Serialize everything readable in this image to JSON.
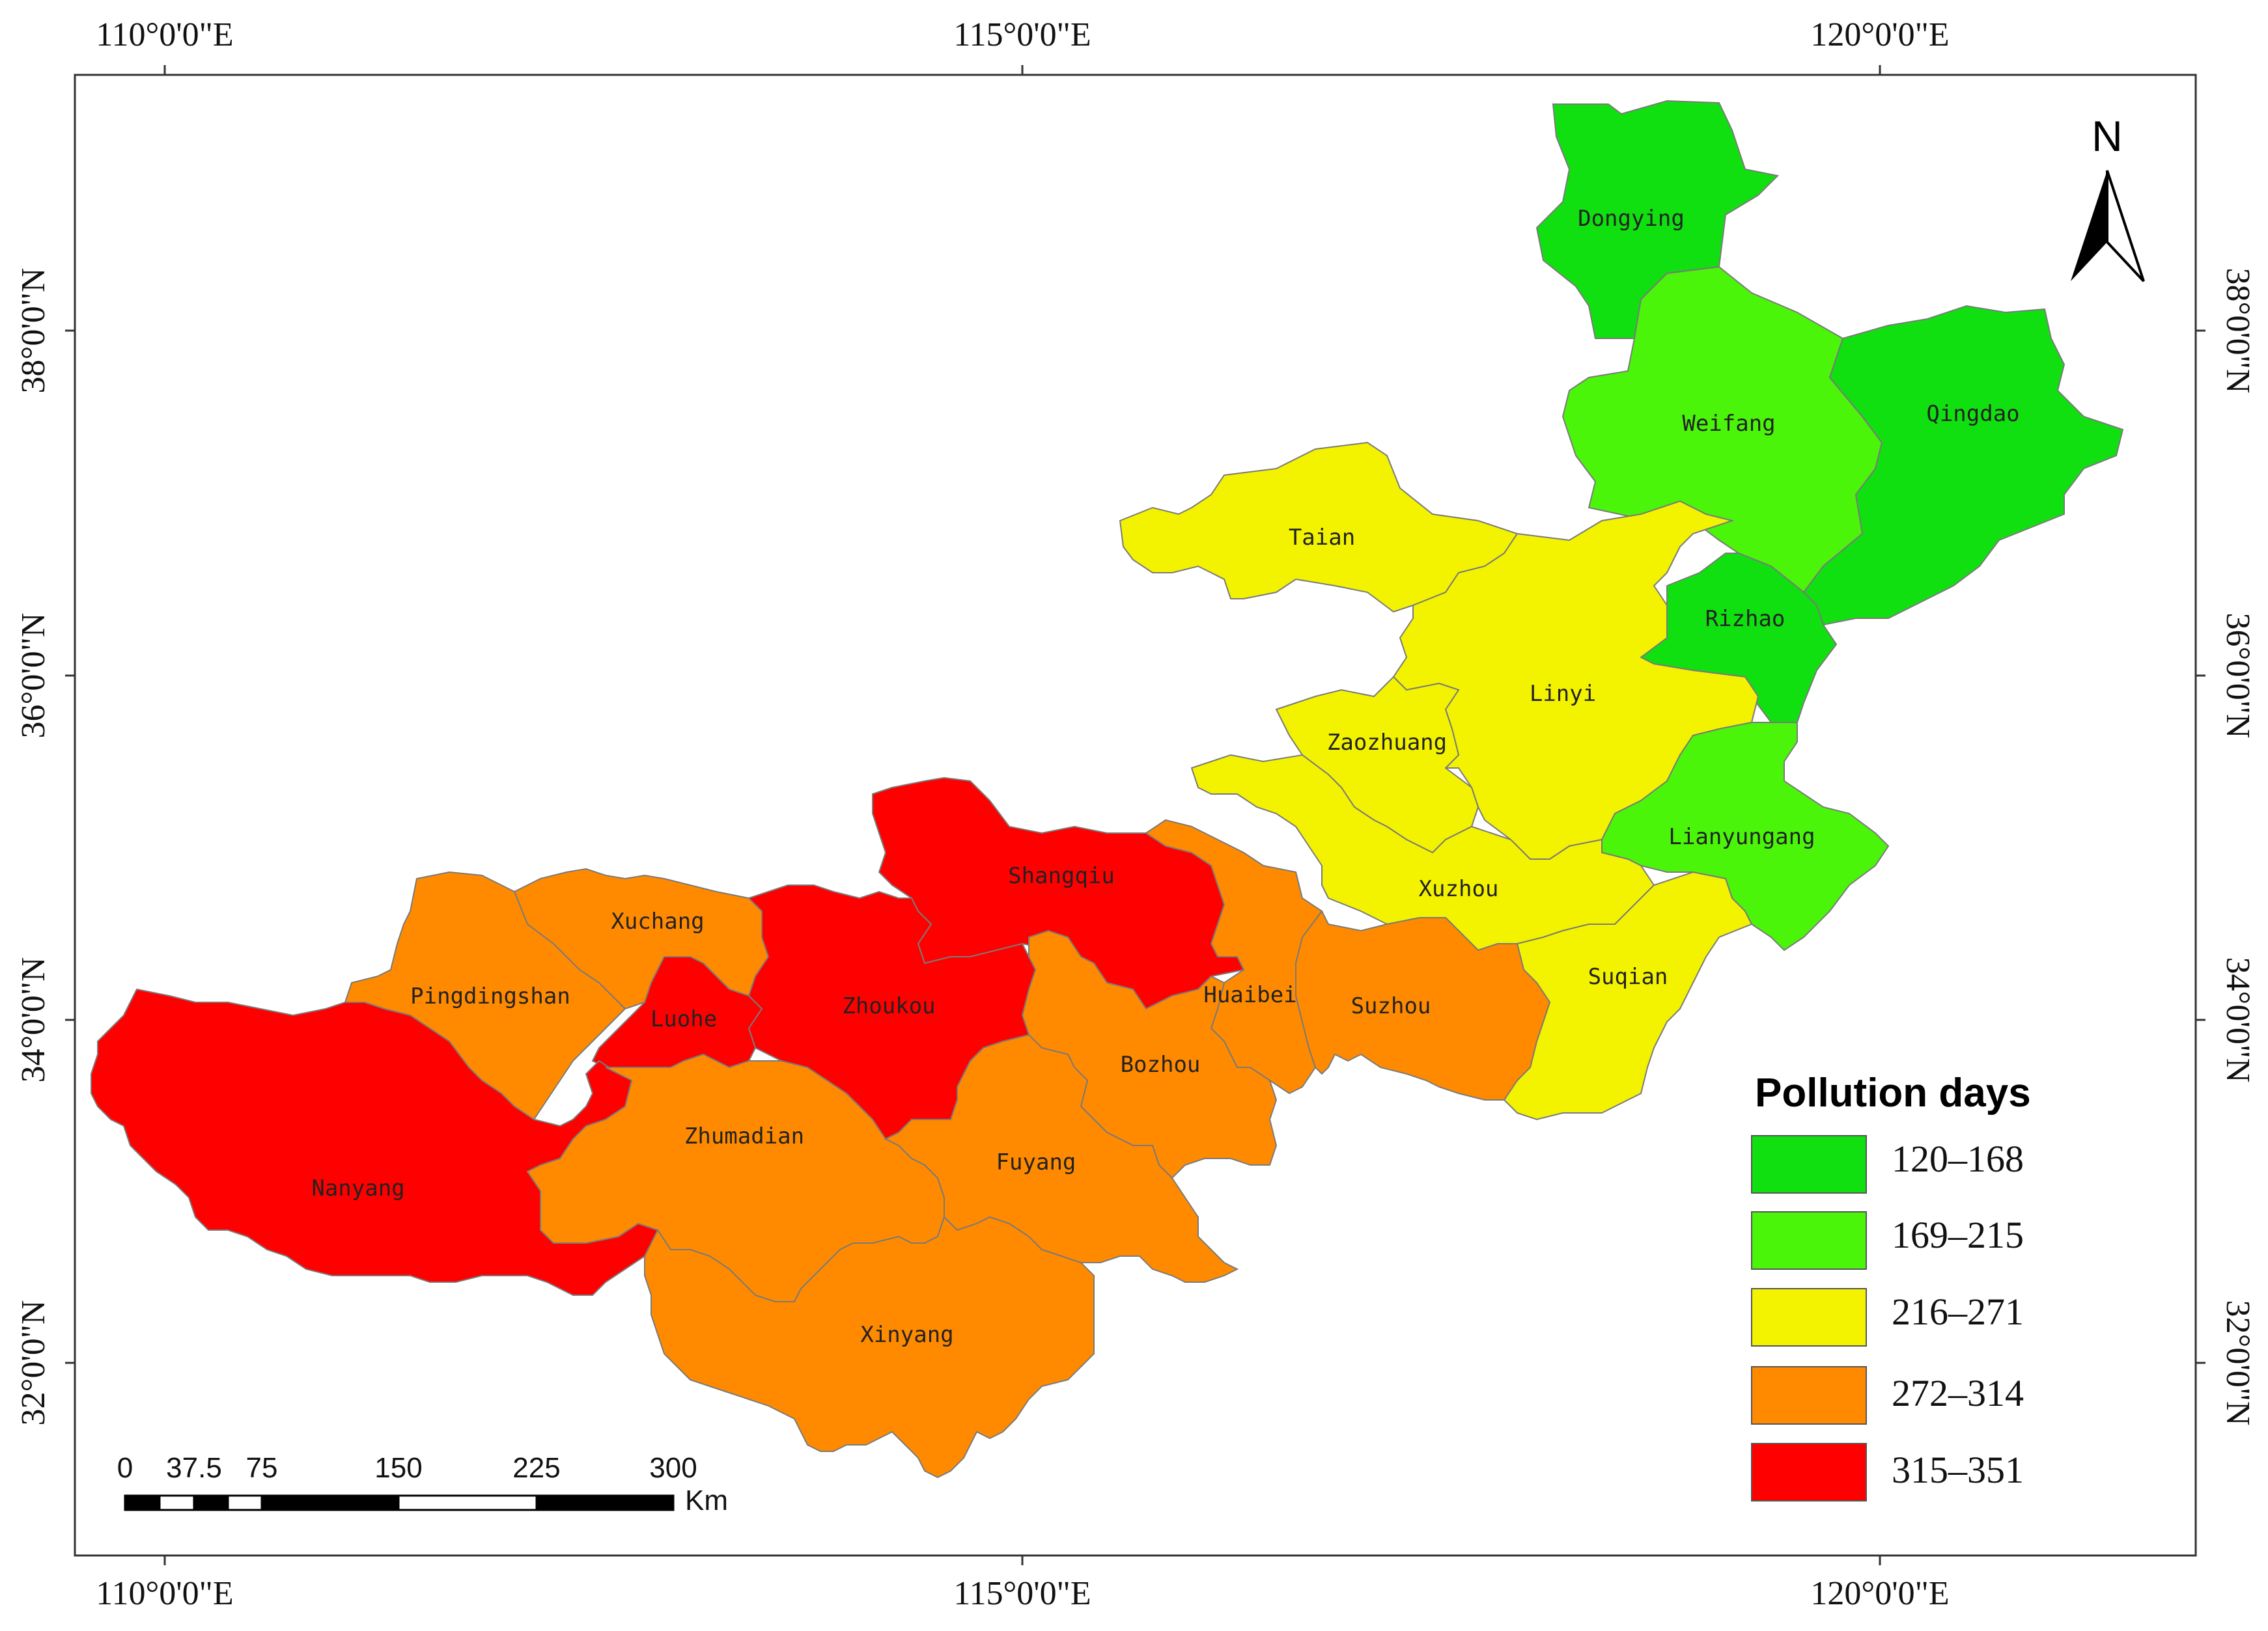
{
  "frame": {
    "top_labels": [
      "110°0'0\"E",
      "115°0'0\"E",
      "120°0'0\"E"
    ],
    "bottom_labels": [
      "110°0'0\"E",
      "115°0'0\"E",
      "120°0'0\"E"
    ],
    "left_labels": [
      "38°0'0\"N",
      "36°0'0\"N",
      "34°0'0\"N",
      "32°0'0\"N"
    ],
    "right_labels": [
      "38°0'0\"N",
      "36°0'0\"N",
      "34°0'0\"N",
      "32°0'0\"N"
    ]
  },
  "north_arrow": {
    "label": "N",
    "icon": "north-arrow-icon"
  },
  "legend": {
    "title": "Pollution days",
    "classes": [
      {
        "label": "120–168",
        "color": "#10e010"
      },
      {
        "label": "169–215",
        "color": "#4af50a"
      },
      {
        "label": "216–271",
        "color": "#f3f300"
      },
      {
        "label": "272–314",
        "color": "#ff8a00"
      },
      {
        "label": "315–351",
        "color": "#ff0000"
      }
    ]
  },
  "scale_bar": {
    "ticks": [
      "0",
      "37.5",
      "75",
      "150",
      "225",
      "300"
    ],
    "unit": "Km"
  },
  "cities": [
    {
      "name": "Dongying",
      "class": 0
    },
    {
      "name": "Qingdao",
      "class": 0
    },
    {
      "name": "Rizhao",
      "class": 0
    },
    {
      "name": "Weifang",
      "class": 1
    },
    {
      "name": "Lianyungang",
      "class": 1
    },
    {
      "name": "Taian",
      "class": 2
    },
    {
      "name": "Linyi",
      "class": 2
    },
    {
      "name": "Zaozhuang",
      "class": 2
    },
    {
      "name": "Xuzhou",
      "class": 2
    },
    {
      "name": "Suqian",
      "class": 2
    },
    {
      "name": "Xuchang",
      "class": 3
    },
    {
      "name": "Pingdingshan",
      "class": 3
    },
    {
      "name": "Huaibei",
      "class": 3
    },
    {
      "name": "Suzhou",
      "class": 3
    },
    {
      "name": "Bozhou",
      "class": 3
    },
    {
      "name": "Zhumadian",
      "class": 3
    },
    {
      "name": "Fuyang",
      "class": 3
    },
    {
      "name": "Xinyang",
      "class": 3
    },
    {
      "name": "Shangqiu",
      "class": 4
    },
    {
      "name": "Zhoukou",
      "class": 4
    },
    {
      "name": "Luohe",
      "class": 4
    },
    {
      "name": "Nanyang",
      "class": 4
    }
  ]
}
